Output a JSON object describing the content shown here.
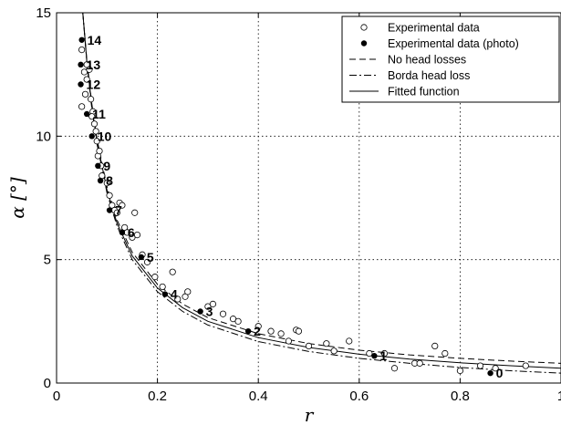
{
  "chart_data": {
    "type": "scatter",
    "xlabel": "r",
    "ylabel": "α [°]",
    "xlim": [
      0,
      1
    ],
    "ylim": [
      0,
      15
    ],
    "x_ticks": [
      "0",
      "0.2",
      "0.4",
      "0.6",
      "0.8",
      "1"
    ],
    "y_ticks": [
      "0",
      "5",
      "10",
      "15"
    ],
    "grid": true,
    "legend_placement": "top-right",
    "legend": [
      {
        "label": "Experimental data",
        "marker": "open-circle"
      },
      {
        "label": "Experimental data (photo)",
        "marker": "filled-circle"
      },
      {
        "label": "No head losses",
        "line": "dashed"
      },
      {
        "label": "Borda head loss",
        "line": "dashdot"
      },
      {
        "label": "Fitted function",
        "line": "solid"
      }
    ],
    "series": [
      {
        "name": "Experimental data",
        "marker": "open-circle",
        "points": [
          [
            0.05,
            13.5
          ],
          [
            0.055,
            12.6
          ],
          [
            0.06,
            12.9
          ],
          [
            0.05,
            11.2
          ],
          [
            0.06,
            12.3
          ],
          [
            0.057,
            11.7
          ],
          [
            0.065,
            12.7
          ],
          [
            0.068,
            11.5
          ],
          [
            0.072,
            11.0
          ],
          [
            0.075,
            10.5
          ],
          [
            0.07,
            10.8
          ],
          [
            0.078,
            10.2
          ],
          [
            0.08,
            9.8
          ],
          [
            0.082,
            9.2
          ],
          [
            0.085,
            9.4
          ],
          [
            0.088,
            8.8
          ],
          [
            0.09,
            8.4
          ],
          [
            0.1,
            8.1
          ],
          [
            0.105,
            7.6
          ],
          [
            0.11,
            7.2
          ],
          [
            0.115,
            7.0
          ],
          [
            0.12,
            6.9
          ],
          [
            0.125,
            7.3
          ],
          [
            0.13,
            7.2
          ],
          [
            0.135,
            6.3
          ],
          [
            0.14,
            6.1
          ],
          [
            0.15,
            5.9
          ],
          [
            0.16,
            6.0
          ],
          [
            0.155,
            6.9
          ],
          [
            0.17,
            5.2
          ],
          [
            0.18,
            4.9
          ],
          [
            0.195,
            4.3
          ],
          [
            0.21,
            3.9
          ],
          [
            0.23,
            4.5
          ],
          [
            0.24,
            3.4
          ],
          [
            0.255,
            3.5
          ],
          [
            0.26,
            3.7
          ],
          [
            0.3,
            3.1
          ],
          [
            0.31,
            3.2
          ],
          [
            0.33,
            2.8
          ],
          [
            0.35,
            2.6
          ],
          [
            0.36,
            2.5
          ],
          [
            0.4,
            2.3
          ],
          [
            0.425,
            2.1
          ],
          [
            0.445,
            2.0
          ],
          [
            0.46,
            1.7
          ],
          [
            0.475,
            2.15
          ],
          [
            0.48,
            2.1
          ],
          [
            0.5,
            1.5
          ],
          [
            0.535,
            1.6
          ],
          [
            0.55,
            1.3
          ],
          [
            0.58,
            1.7
          ],
          [
            0.62,
            1.2
          ],
          [
            0.65,
            1.2
          ],
          [
            0.67,
            0.6
          ],
          [
            0.71,
            0.8
          ],
          [
            0.72,
            0.8
          ],
          [
            0.75,
            1.5
          ],
          [
            0.77,
            1.2
          ],
          [
            0.8,
            0.5
          ],
          [
            0.84,
            0.7
          ],
          [
            0.87,
            0.6
          ],
          [
            0.93,
            0.7
          ]
        ]
      },
      {
        "name": "Experimental data (photo)",
        "marker": "filled-circle",
        "points": [
          {
            "x": 0.86,
            "y": 0.4,
            "label": "0"
          },
          {
            "x": 0.63,
            "y": 1.1,
            "label": "1"
          },
          {
            "x": 0.38,
            "y": 2.1,
            "label": "2"
          },
          {
            "x": 0.285,
            "y": 2.9,
            "label": "3"
          },
          {
            "x": 0.215,
            "y": 3.6,
            "label": "4"
          },
          {
            "x": 0.168,
            "y": 5.1,
            "label": "5"
          },
          {
            "x": 0.13,
            "y": 6.1,
            "label": "6"
          },
          {
            "x": 0.105,
            "y": 7.0,
            "label": "7"
          },
          {
            "x": 0.087,
            "y": 8.2,
            "label": "8"
          },
          {
            "x": 0.082,
            "y": 8.8,
            "label": "9"
          },
          {
            "x": 0.07,
            "y": 10.0,
            "label": "10"
          },
          {
            "x": 0.06,
            "y": 10.9,
            "label": "11"
          },
          {
            "x": 0.048,
            "y": 12.1,
            "label": "12"
          },
          {
            "x": 0.048,
            "y": 12.9,
            "label": "13"
          },
          {
            "x": 0.05,
            "y": 13.9,
            "label": "14"
          }
        ]
      },
      {
        "name": "No head losses",
        "line": "dashed",
        "points": [
          [
            0.052,
            15.0
          ],
          [
            0.06,
            13.1
          ],
          [
            0.07,
            11.3
          ],
          [
            0.08,
            9.9
          ],
          [
            0.1,
            7.95
          ],
          [
            0.12,
            6.6
          ],
          [
            0.15,
            5.3
          ],
          [
            0.2,
            4.0
          ],
          [
            0.25,
            3.2
          ],
          [
            0.3,
            2.65
          ],
          [
            0.4,
            2.0
          ],
          [
            0.5,
            1.6
          ],
          [
            0.6,
            1.33
          ],
          [
            0.7,
            1.14
          ],
          [
            0.8,
            1.0
          ],
          [
            0.9,
            0.89
          ],
          [
            1.0,
            0.8
          ]
        ]
      },
      {
        "name": "Borda head loss",
        "line": "dashdot",
        "points": [
          [
            0.052,
            15.0
          ],
          [
            0.06,
            13.0
          ],
          [
            0.07,
            11.1
          ],
          [
            0.08,
            9.7
          ],
          [
            0.1,
            7.7
          ],
          [
            0.12,
            6.35
          ],
          [
            0.15,
            5.0
          ],
          [
            0.2,
            3.7
          ],
          [
            0.25,
            2.9
          ],
          [
            0.3,
            2.35
          ],
          [
            0.4,
            1.68
          ],
          [
            0.5,
            1.28
          ],
          [
            0.6,
            1.0
          ],
          [
            0.7,
            0.8
          ],
          [
            0.8,
            0.63
          ],
          [
            0.9,
            0.5
          ],
          [
            1.0,
            0.4
          ]
        ]
      },
      {
        "name": "Fitted function",
        "line": "solid",
        "points": [
          [
            0.052,
            15.0
          ],
          [
            0.06,
            13.05
          ],
          [
            0.07,
            11.2
          ],
          [
            0.08,
            9.8
          ],
          [
            0.1,
            7.82
          ],
          [
            0.12,
            6.47
          ],
          [
            0.15,
            5.15
          ],
          [
            0.2,
            3.85
          ],
          [
            0.25,
            3.05
          ],
          [
            0.3,
            2.5
          ],
          [
            0.4,
            1.84
          ],
          [
            0.5,
            1.44
          ],
          [
            0.6,
            1.17
          ],
          [
            0.7,
            0.97
          ],
          [
            0.8,
            0.82
          ],
          [
            0.9,
            0.7
          ],
          [
            1.0,
            0.6
          ]
        ]
      }
    ]
  }
}
